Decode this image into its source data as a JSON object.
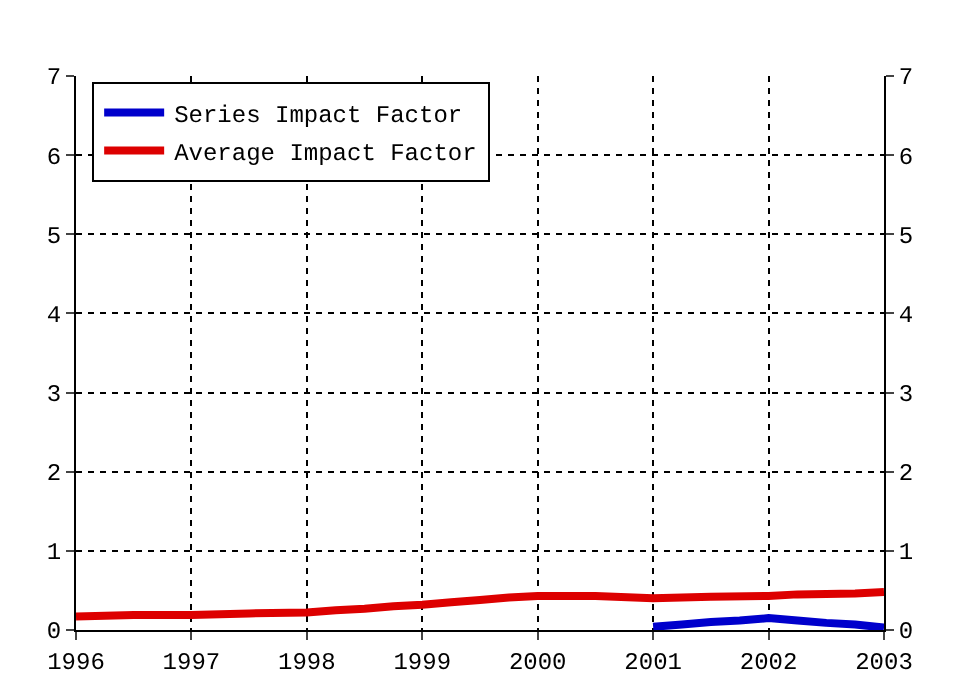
{
  "chart_data": {
    "type": "line",
    "xlim": [
      1996,
      2003
    ],
    "xticks": [
      1996,
      1997,
      1998,
      1999,
      2000,
      2001,
      2002,
      2003
    ],
    "ylim": [
      0,
      7
    ],
    "yticks": [
      0,
      1,
      2,
      3,
      4,
      5,
      6,
      7
    ],
    "y2lim": [
      0,
      7
    ],
    "y2ticks": [
      0,
      1,
      2,
      3,
      4,
      5,
      6,
      7
    ],
    "grid": true,
    "line_style": "solid",
    "legend": "top left",
    "series": [
      {
        "name": "Series Impact Factor",
        "color": "#0000cc",
        "x": [
          2001,
          2001.25,
          2001.5,
          2001.75,
          2002,
          2002.25,
          2002.5,
          2002.75,
          2003
        ],
        "values": [
          0.04,
          0.07,
          0.1,
          0.12,
          0.15,
          0.12,
          0.09,
          0.07,
          0.03
        ]
      },
      {
        "name": "Average Impact Factor",
        "color": "#dd0000",
        "x": [
          1996,
          1996.5,
          1997,
          1997.5,
          1998,
          1998.25,
          1998.5,
          1998.75,
          1999,
          1999.25,
          1999.5,
          1999.75,
          2000,
          2000.5,
          2001,
          2001.5,
          2002,
          2002.25,
          2002.75,
          2003
        ],
        "values": [
          0.17,
          0.19,
          0.19,
          0.21,
          0.22,
          0.25,
          0.27,
          0.3,
          0.32,
          0.35,
          0.38,
          0.41,
          0.43,
          0.43,
          0.4,
          0.42,
          0.43,
          0.45,
          0.46,
          0.48
        ]
      }
    ]
  }
}
